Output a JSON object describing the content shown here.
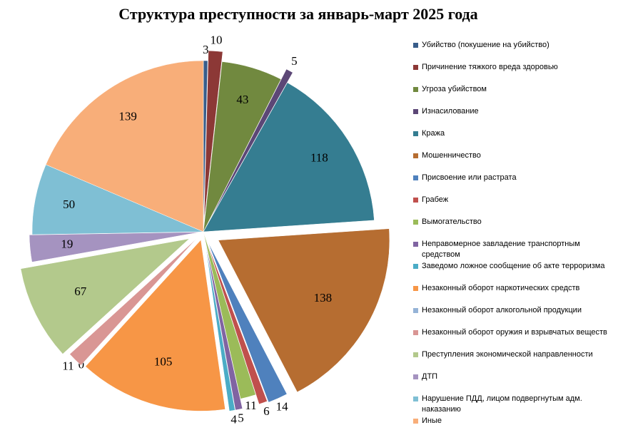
{
  "chart_data": {
    "type": "pie",
    "title": "Структура преступности за январь-март 2025 года",
    "categories": [
      "Убийство (покушение на убийство)",
      "Причинение тяжкого вреда здоровью",
      "Угроза убийством",
      "Изнасилование",
      "Кража",
      "Мошенничество",
      "Присвоение или растрата",
      "Грабеж",
      "Вымогательство",
      "Неправомерное завладение транспортным средством",
      "Заведомо ложное сообщение об акте терроризма",
      "Незаконный оборот наркотических средств",
      "Незаконный оборот алкогольной продукции",
      "Незаконный оборот оружия и взрывчатых веществ",
      "Преступления экономической направленности",
      "ДТП",
      "Нарушение ПДД, лицом подвергнутым адм. наказанию",
      "Иные"
    ],
    "values": [
      3,
      10,
      43,
      5,
      118,
      138,
      14,
      6,
      11,
      5,
      4,
      105,
      0,
      11,
      67,
      19,
      50,
      139
    ],
    "colors": [
      "#385d8a",
      "#8c3836",
      "#71893f",
      "#5c4776",
      "#357d91",
      "#b66d31",
      "#4f81bd",
      "#c0504d",
      "#9bbb59",
      "#8064a2",
      "#4bacc6",
      "#f79646",
      "#95b3d7",
      "#d99694",
      "#b3c98c",
      "#a593c0",
      "#7fbfd4",
      "#f8ae79"
    ],
    "legend": "right"
  }
}
